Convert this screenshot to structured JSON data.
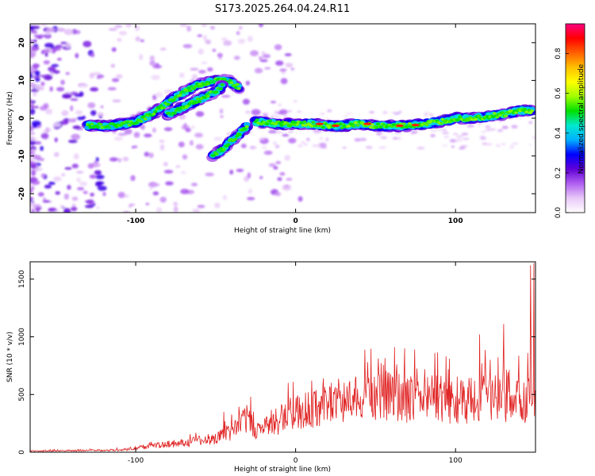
{
  "title": "S173.2025.264.04.24.R11",
  "chart_data": [
    {
      "type": "heatmap",
      "xlabel": "Height of straight line (km)",
      "ylabel": "Frequency (Hz)",
      "xlim": [
        -166,
        150
      ],
      "ylim": [
        -25,
        25
      ],
      "xticks": [
        -100,
        0,
        100
      ],
      "yticks": [
        -20,
        -10,
        0,
        10,
        20
      ],
      "colorbar": {
        "label": "Normalized spectral amplitude",
        "range": [
          0,
          0.95
        ],
        "ticks": [
          0.0,
          0.2,
          0.4,
          0.6,
          0.8
        ],
        "colormap": [
          "#ffffff",
          "#e8c8f8",
          "#b060f0",
          "#6000d8",
          "#0000ff",
          "#00b0ff",
          "#00e8d0",
          "#00e000",
          "#a0ff00",
          "#ffff00",
          "#ffc000",
          "#ff6000",
          "#ff0000",
          "#ff0080"
        ]
      },
      "ridges": [
        {
          "name_hint": "main",
          "points": [
            [
              -130,
              -2
            ],
            [
              -115,
              -2
            ],
            [
              -100,
              -1
            ],
            [
              -90,
              1
            ],
            [
              -80,
              4
            ],
            [
              -70,
              7
            ],
            [
              -60,
              9
            ],
            [
              -50,
              10
            ],
            [
              -42,
              10
            ],
            [
              -35,
              8
            ]
          ]
        },
        {
          "name_hint": "upper",
          "points": [
            [
              -80,
              1
            ],
            [
              -70,
              3
            ],
            [
              -60,
              5
            ],
            [
              -50,
              7
            ],
            [
              -45,
              9
            ]
          ]
        },
        {
          "name_hint": "lower",
          "points": [
            [
              -52,
              -10
            ],
            [
              -45,
              -8
            ],
            [
              -40,
              -6
            ],
            [
              -35,
              -4
            ],
            [
              -30,
              -2
            ]
          ]
        },
        {
          "name_hint": "long",
          "points": [
            [
              -25,
              -1
            ],
            [
              -10,
              -1.5
            ],
            [
              0,
              -1.5
            ],
            [
              10,
              -1.5
            ],
            [
              20,
              -2
            ],
            [
              30,
              -2
            ],
            [
              40,
              -1.5
            ],
            [
              50,
              -2
            ],
            [
              60,
              -2
            ],
            [
              70,
              -2
            ],
            [
              80,
              -1.5
            ],
            [
              90,
              -1
            ],
            [
              100,
              0
            ],
            [
              110,
              0
            ],
            [
              120,
              0.5
            ],
            [
              130,
              1
            ],
            [
              140,
              2
            ],
            [
              148,
              2
            ]
          ]
        }
      ],
      "peaks": [
        [
          15,
          -1.5
        ],
        [
          25,
          -2
        ],
        [
          45,
          -1.5
        ],
        [
          65,
          -2
        ],
        [
          75,
          -1.8
        ]
      ]
    },
    {
      "type": "line",
      "xlabel": "Height of straight line (km)",
      "ylabel": "SNR (10 * v/v)",
      "xlim": [
        -166,
        150
      ],
      "ylim": [
        0,
        1650
      ],
      "xticks": [
        -100,
        0,
        100
      ],
      "yticks": [
        0,
        500,
        1000,
        1500
      ],
      "color": "#e02020",
      "envelope": {
        "x": [
          -166,
          -130,
          -110,
          -100,
          -90,
          -80,
          -70,
          -60,
          -50,
          -40,
          -35,
          -30,
          -25,
          -20,
          -10,
          0,
          10,
          20,
          30,
          40,
          50,
          60,
          70,
          80,
          90,
          100,
          110,
          120,
          130,
          140,
          145,
          148,
          150
        ],
        "y": [
          10,
          15,
          20,
          30,
          50,
          70,
          80,
          100,
          120,
          180,
          220,
          300,
          180,
          200,
          280,
          350,
          380,
          420,
          450,
          460,
          480,
          500,
          450,
          470,
          460,
          420,
          450,
          470,
          450,
          440,
          450,
          700,
          500
        ]
      },
      "spikes": [
        [
          -45,
          350
        ],
        [
          -28,
          480
        ],
        [
          10,
          620
        ],
        [
          45,
          780
        ],
        [
          68,
          900
        ],
        [
          87,
          860
        ],
        [
          115,
          1020
        ],
        [
          130,
          1110
        ],
        [
          145,
          860
        ],
        [
          147,
          1620
        ],
        [
          149,
          1640
        ]
      ]
    }
  ]
}
